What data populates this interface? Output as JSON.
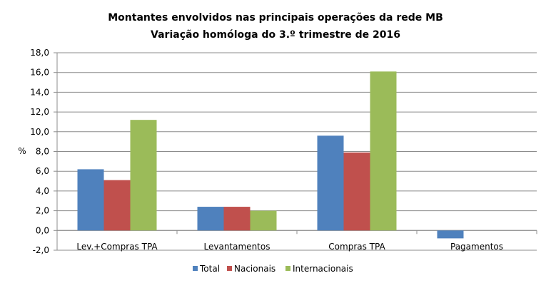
{
  "chart_data": {
    "type": "bar",
    "title": "Montantes envolvidos nas principais operações da rede MB",
    "subtitle": "Variação homóloga do 3.º trimestre de 2016",
    "ylabel": "%",
    "xlabel": "",
    "ylim": [
      -2.0,
      18.0
    ],
    "yticks": [
      "18,0",
      "16,0",
      "14,0",
      "12,0",
      "10,0",
      "8,0",
      "6,0",
      "4,0",
      "2,0",
      "0,0",
      "-2,0"
    ],
    "categories": [
      "Lev.+Compras TPA",
      "Levantamentos",
      "Compras TPA",
      "Pagamentos"
    ],
    "series": [
      {
        "name": "Total",
        "color": "#4f81bd",
        "values": [
          6.2,
          2.4,
          9.6,
          -0.8
        ]
      },
      {
        "name": "Nacionais",
        "color": "#c0504d",
        "values": [
          5.1,
          2.4,
          7.9,
          0.0
        ]
      },
      {
        "name": "Internacionais",
        "color": "#9bbb59",
        "values": [
          11.2,
          2.0,
          16.1,
          0.0
        ]
      }
    ],
    "grid": true,
    "legend_position": "bottom"
  }
}
